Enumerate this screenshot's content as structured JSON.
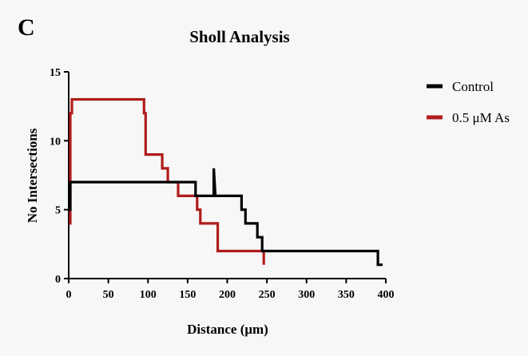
{
  "panel_label": "C",
  "chart_data": {
    "type": "line",
    "title": "Sholl Analysis",
    "xlabel": "Distance (μm)",
    "ylabel": "No Intersections",
    "xlim": [
      0,
      400
    ],
    "ylim": [
      0,
      15
    ],
    "x_ticks": [
      0,
      50,
      100,
      150,
      200,
      250,
      300,
      350,
      400
    ],
    "y_ticks": [
      0,
      5,
      10,
      15
    ],
    "grid": false,
    "legend_position": "top-right",
    "series": [
      {
        "name": "Control",
        "color": "#000000",
        "points": [
          [
            0,
            5
          ],
          [
            2,
            5
          ],
          [
            2,
            7
          ],
          [
            160,
            7
          ],
          [
            160,
            6
          ],
          [
            183,
            6
          ],
          [
            183,
            8
          ],
          [
            185,
            6
          ],
          [
            218,
            6
          ],
          [
            218,
            5
          ],
          [
            223,
            5
          ],
          [
            223,
            4
          ],
          [
            238,
            4
          ],
          [
            238,
            3
          ],
          [
            244,
            3
          ],
          [
            244,
            2
          ],
          [
            390,
            2
          ],
          [
            390,
            1
          ],
          [
            396,
            1
          ]
        ]
      },
      {
        "name": "0.5 μM As",
        "color": "#b01c1c",
        "points": [
          [
            0,
            4
          ],
          [
            2,
            4
          ],
          [
            2,
            12
          ],
          [
            4,
            12
          ],
          [
            4,
            13
          ],
          [
            95,
            13
          ],
          [
            95,
            12
          ],
          [
            97,
            12
          ],
          [
            97,
            9
          ],
          [
            118,
            9
          ],
          [
            118,
            8
          ],
          [
            125,
            8
          ],
          [
            125,
            7
          ],
          [
            138,
            7
          ],
          [
            138,
            6
          ],
          [
            162,
            6
          ],
          [
            162,
            5
          ],
          [
            166,
            5
          ],
          [
            166,
            4
          ],
          [
            188,
            4
          ],
          [
            188,
            2
          ],
          [
            246,
            2
          ],
          [
            246,
            1
          ]
        ]
      }
    ]
  }
}
